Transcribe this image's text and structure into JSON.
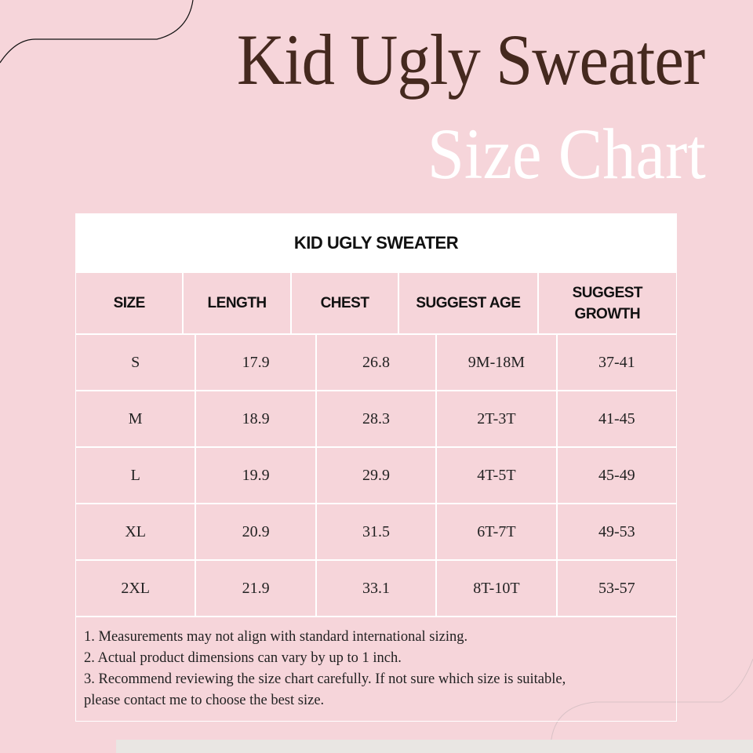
{
  "title": "Kid Ugly Sweater",
  "subtitle": "Size Chart",
  "table": {
    "caption": "KID UGLY SWEATER",
    "headers": [
      "SIZE",
      "LENGTH",
      "CHEST",
      "SUGGEST AGE",
      "SUGGEST GROWTH"
    ],
    "rows": [
      [
        "S",
        "17.9",
        "26.8",
        "9M-18M",
        "37-41"
      ],
      [
        "M",
        "18.9",
        "28.3",
        "2T-3T",
        "41-45"
      ],
      [
        "L",
        "19.9",
        "29.9",
        "4T-5T",
        "45-49"
      ],
      [
        "XL",
        "20.9",
        "31.5",
        "6T-7T",
        "49-53"
      ],
      [
        "2XL",
        "21.9",
        "33.1",
        "8T-10T",
        "53-57"
      ]
    ],
    "notes": [
      "1. Measurements may not align with standard international sizing.",
      "2. Actual product dimensions can vary by up to 1 inch.",
      "3. Recommend reviewing the size chart carefully. If not sure which size is suitable,",
      "please contact me to choose the best size."
    ]
  },
  "colors": {
    "background": "#f6d5da",
    "title": "#45291f",
    "subtitle": "#ffffff"
  }
}
